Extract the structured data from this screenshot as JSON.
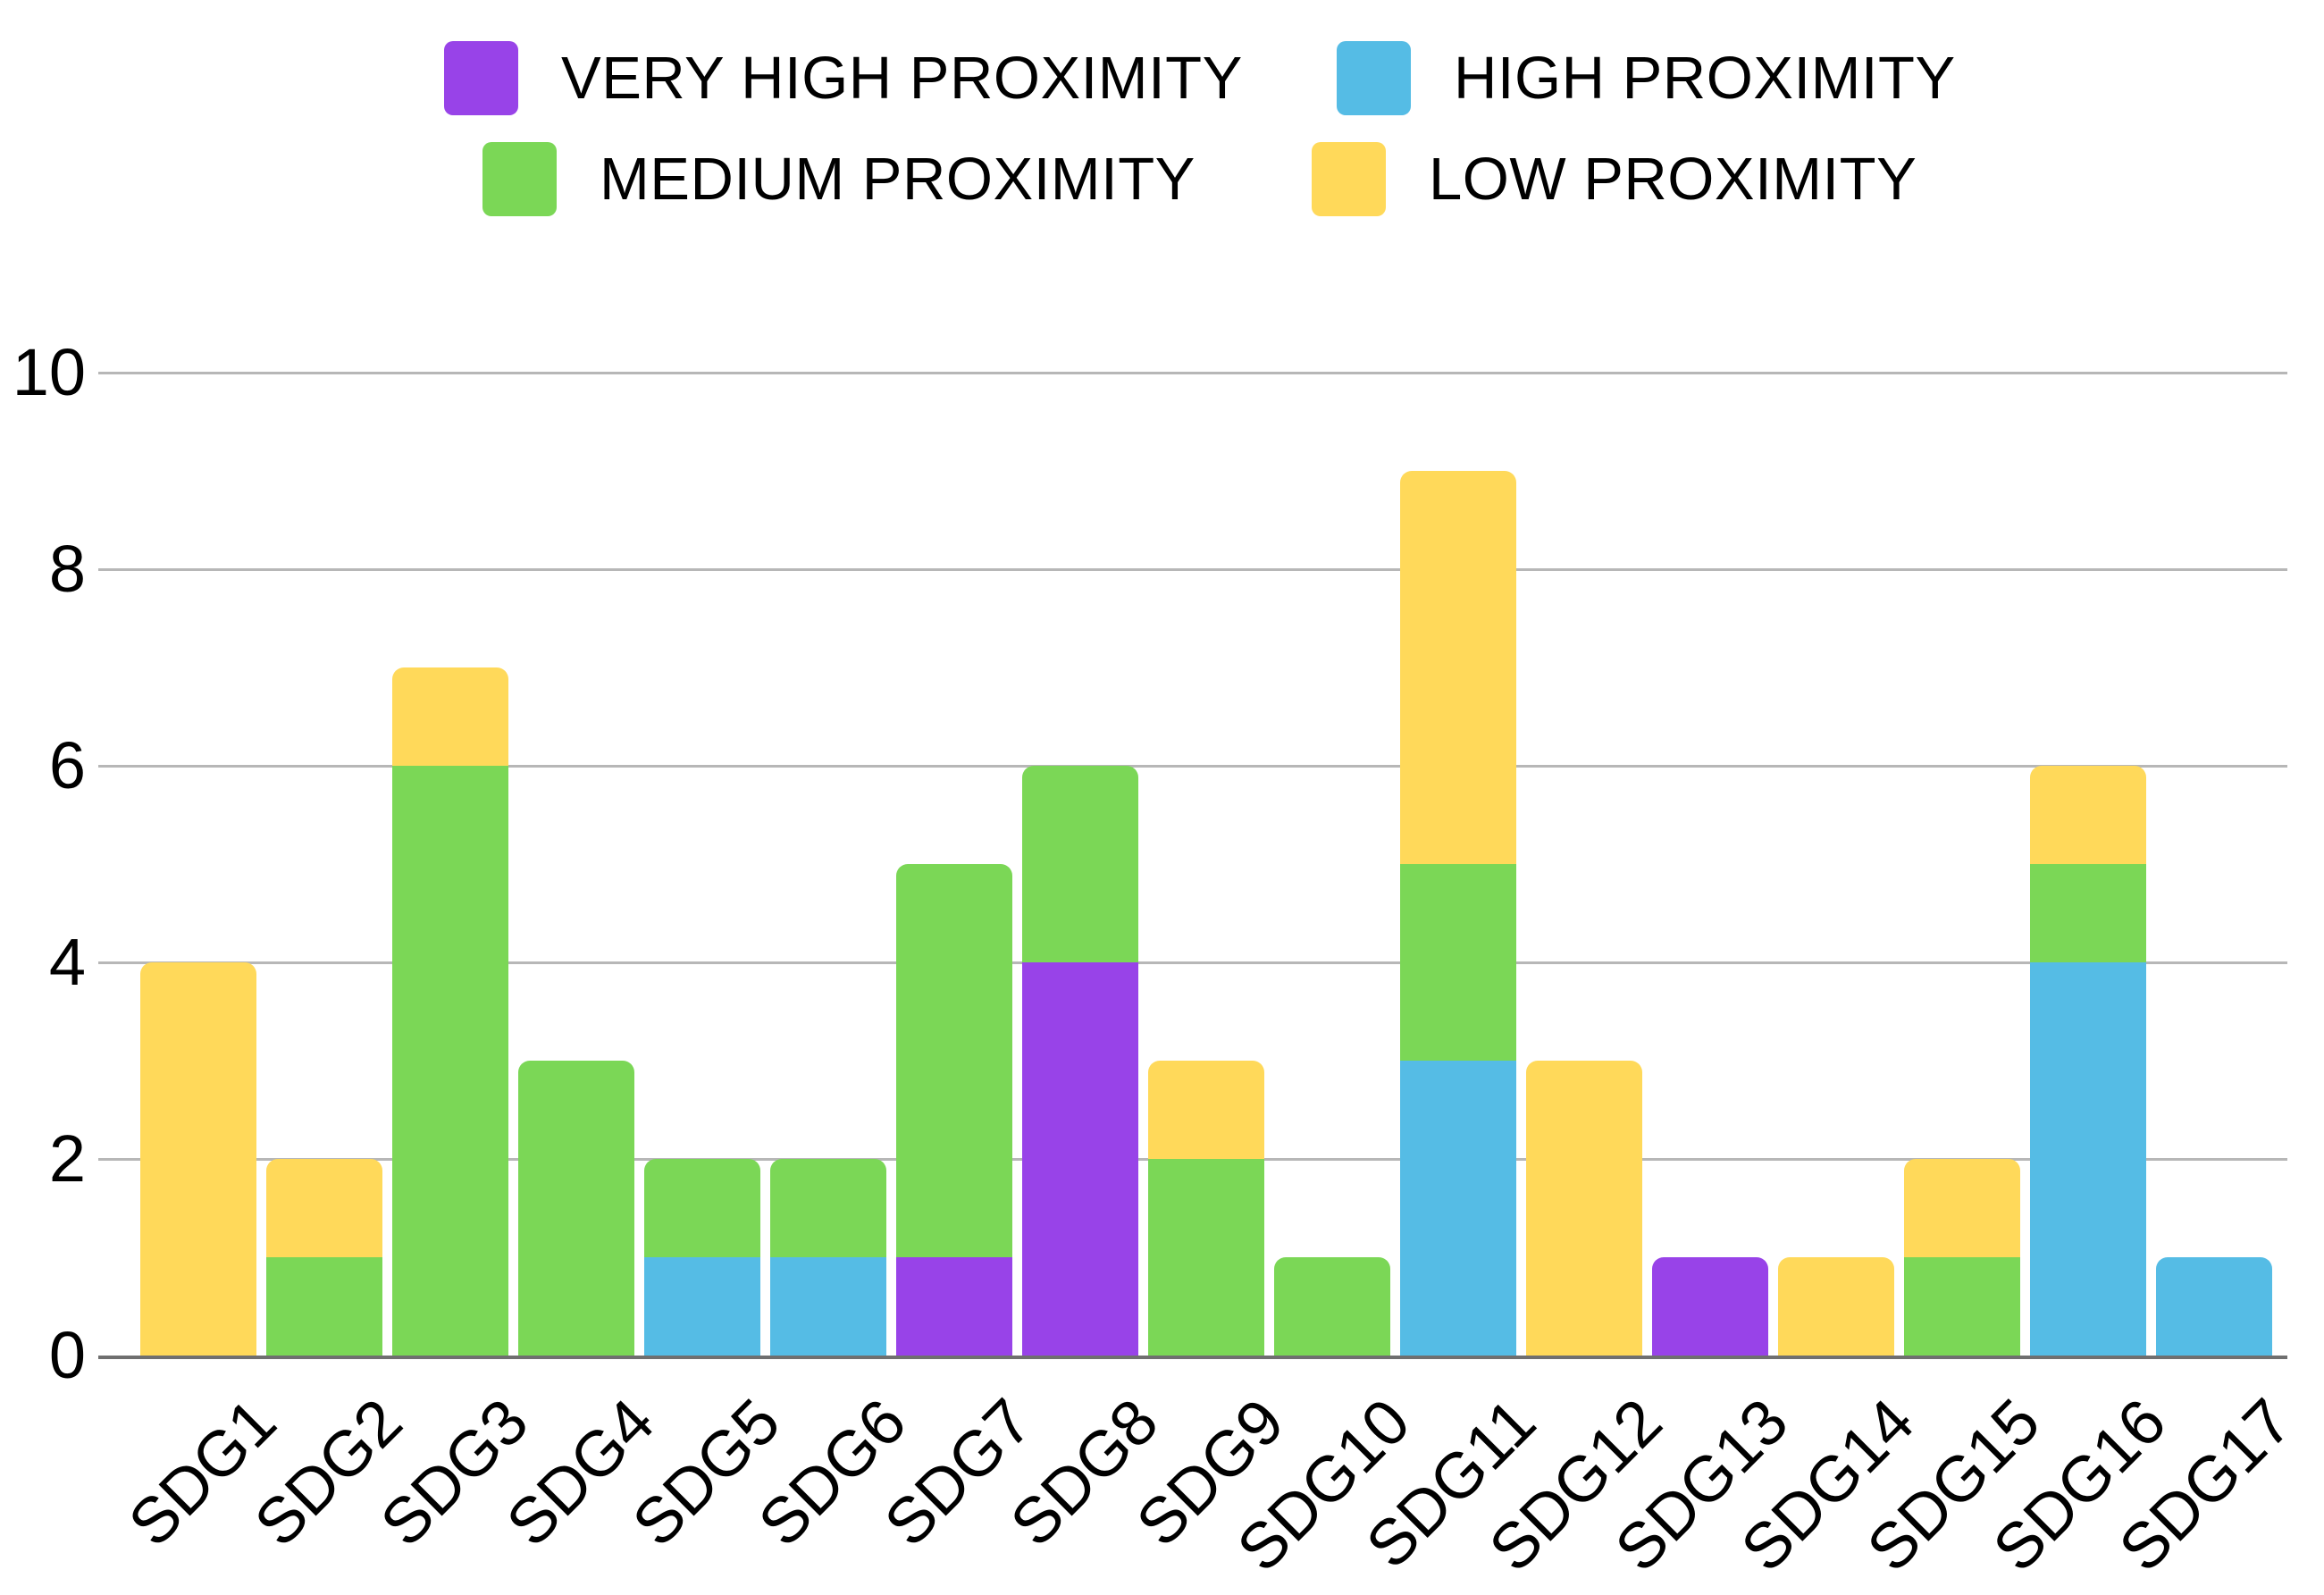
{
  "legend": {
    "items": [
      {
        "label": "VERY HIGH PROXIMITY",
        "color": "#9843e8"
      },
      {
        "label": "HIGH PROXIMITY",
        "color": "#55bce5"
      },
      {
        "label": "MEDIUM PROXIMITY",
        "color": "#7bd756"
      },
      {
        "label": "LOW PROXIMITY",
        "color": "#ffd95a"
      }
    ]
  },
  "chart_data": {
    "type": "bar",
    "stacked": true,
    "title": "",
    "xlabel": "",
    "ylabel": "",
    "categories": [
      "SDG1",
      "SDG2",
      "SDG3",
      "SDG4",
      "SDG5",
      "SDG6",
      "SDG7",
      "SDG8",
      "SDG9",
      "SDG10",
      "SDG11",
      "SDG12",
      "SDG13",
      "SDG14",
      "SDG15",
      "SDG16",
      "SDG17"
    ],
    "series": [
      {
        "name": "VERY HIGH PROXIMITY",
        "color": "#9843e8",
        "values": [
          0,
          0,
          0,
          0,
          0,
          0,
          1,
          4,
          0,
          0,
          0,
          0,
          1,
          0,
          0,
          0,
          0
        ]
      },
      {
        "name": "HIGH PROXIMITY",
        "color": "#55bce5",
        "values": [
          0,
          0,
          0,
          0,
          1,
          1,
          0,
          0,
          0,
          0,
          3,
          0,
          0,
          0,
          0,
          4,
          1
        ]
      },
      {
        "name": "MEDIUM PROXIMITY",
        "color": "#7bd756",
        "values": [
          0,
          1,
          6,
          3,
          1,
          1,
          4,
          2,
          2,
          1,
          2,
          0,
          0,
          0,
          1,
          1,
          0
        ]
      },
      {
        "name": "LOW PROXIMITY",
        "color": "#ffd95a",
        "values": [
          4,
          1,
          1,
          0,
          0,
          0,
          0,
          0,
          1,
          0,
          4,
          3,
          0,
          1,
          1,
          1,
          0
        ]
      }
    ],
    "totals": [
      4,
      2,
      7,
      3,
      2,
      2,
      5,
      6,
      3,
      1,
      9,
      3,
      1,
      1,
      2,
      6,
      1
    ],
    "ylim": [
      0,
      10
    ],
    "yticks": [
      0,
      2,
      4,
      6,
      8,
      10
    ],
    "ytick_labels": [
      "0",
      "2",
      "4",
      "6",
      "8",
      "10"
    ],
    "grid": true,
    "legend_position": "top",
    "colors": {
      "gridline": "#b7b7b7",
      "axis_line": "#6f6f6f",
      "text": "#000000",
      "background": "#ffffff"
    }
  }
}
